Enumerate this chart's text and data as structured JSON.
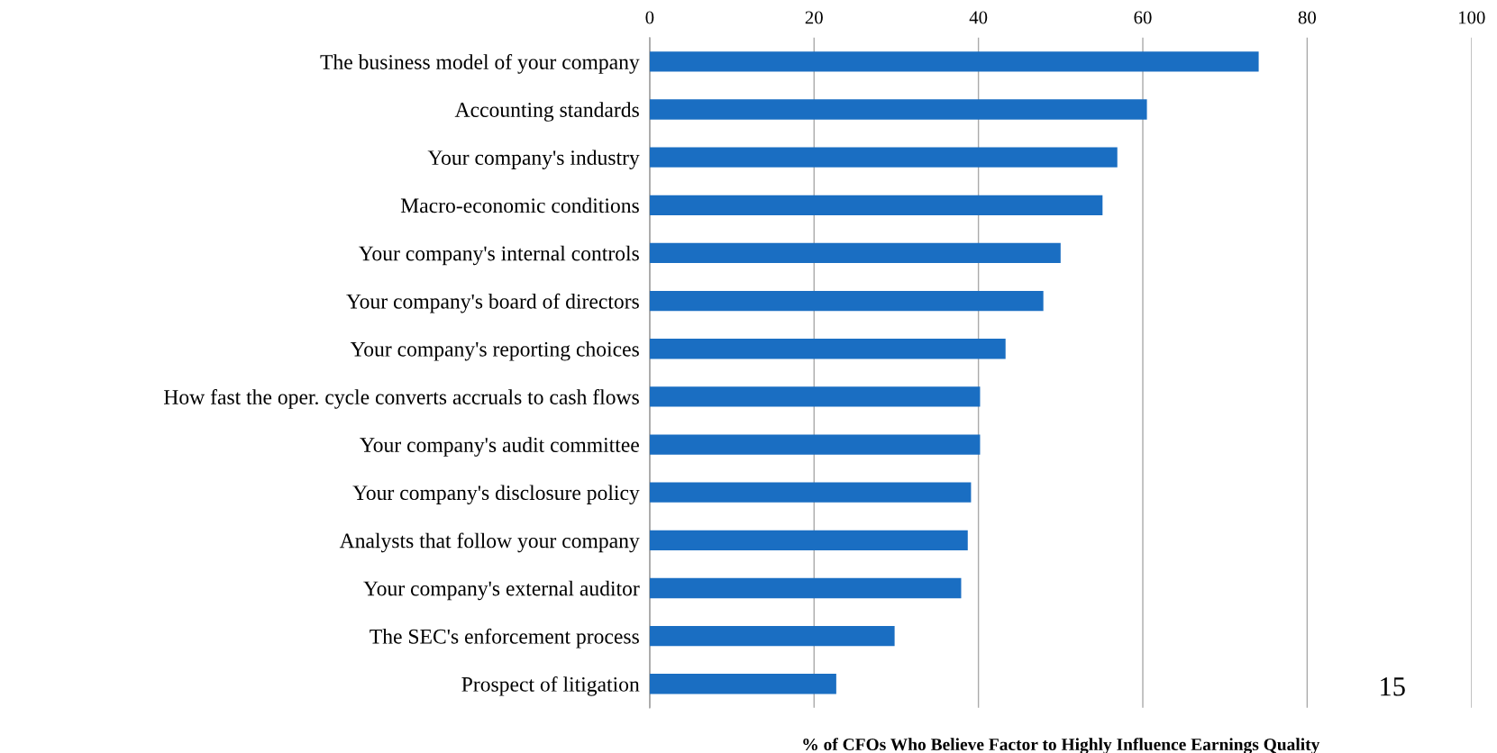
{
  "chart_data": {
    "type": "bar",
    "orientation": "horizontal",
    "xlabel": "% of CFOs Who Believe Factor to Highly Influence Earnings Quality",
    "categories": [
      "The business model of your company",
      "Accounting standards",
      "Your company's industry",
      "Macro-economic conditions",
      "Your company's internal controls",
      "Your company's board of directors",
      "Your company's reporting choices",
      "How fast the oper. cycle converts accruals to cash flows",
      "Your company's audit committee",
      "Your company's disclosure policy",
      "Analysts that follow your company",
      "Your company's external auditor",
      "The SEC's enforcement process",
      "Prospect of litigation"
    ],
    "values": [
      74.1,
      60.5,
      56.9,
      55.1,
      50.0,
      47.9,
      43.3,
      40.2,
      40.2,
      39.1,
      38.7,
      37.9,
      29.8,
      22.7
    ],
    "color": "#1a6ec2",
    "xlim": [
      0,
      100
    ],
    "xticks": [
      0,
      20,
      40,
      60,
      80,
      100
    ],
    "grid": "x",
    "annotations": [
      "15"
    ]
  }
}
